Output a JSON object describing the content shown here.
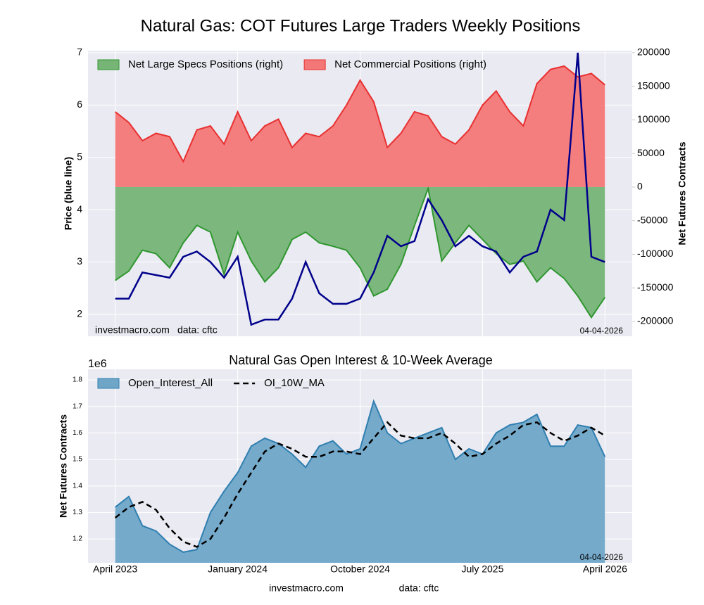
{
  "title": "Natural Gas: COT Futures Large Traders Weekly Positions",
  "footer": {
    "site": "investmacro.com",
    "source": "data: cftc"
  },
  "chart_data": [
    {
      "type": "line",
      "y_label": "Price (blue line)",
      "y2_label": "Net Futures Contracts",
      "annotations": {
        "site": "investmacro.com",
        "source": "data: cftc",
        "date": "04-04-2026"
      },
      "x": [
        "2023-04",
        "2023-05",
        "2023-06",
        "2023-07",
        "2023-08",
        "2023-09",
        "2023-10",
        "2023-11",
        "2023-12",
        "2024-01",
        "2024-02",
        "2024-03",
        "2024-04",
        "2024-05",
        "2024-06",
        "2024-07",
        "2024-08",
        "2024-09",
        "2024-10",
        "2024-11",
        "2024-12",
        "2025-01",
        "2025-02",
        "2025-03",
        "2025-04",
        "2025-05",
        "2025-06",
        "2025-07",
        "2025-08",
        "2025-09",
        "2025-10",
        "2025-11",
        "2025-12",
        "2026-01",
        "2026-02",
        "2026-03",
        "2026-04"
      ],
      "xlim": [
        "2023-02",
        "2026-06"
      ],
      "ylim": [
        1.58,
        7.04
      ],
      "yticks": [
        2,
        3,
        4,
        5,
        6,
        7
      ],
      "y2lim": [
        -222000,
        203000
      ],
      "y2ticks": [
        -200000,
        -150000,
        -100000,
        -50000,
        0,
        50000,
        100000,
        150000,
        200000
      ],
      "grid": true,
      "legend": "upper left",
      "series": [
        {
          "name": "Net Large Specs Positions (right)",
          "type": "area",
          "axis": "y2",
          "color": "#76b576",
          "line_color": "#2f962f",
          "values": [
            -139000,
            -125000,
            -94000,
            -99000,
            -120000,
            -83000,
            -57000,
            -67000,
            -130000,
            -67000,
            -110000,
            -141000,
            -120000,
            -78000,
            -67000,
            -83000,
            -88000,
            -94000,
            -120000,
            -162000,
            -152000,
            -115000,
            -57000,
            -2000,
            -110000,
            -83000,
            -57000,
            -78000,
            -99000,
            -115000,
            -110000,
            -141000,
            -120000,
            -136000,
            -162000,
            -194000,
            -164000
          ]
        },
        {
          "name": "Net Commercial Positions (right)",
          "type": "area",
          "axis": "y2",
          "color": "#f47777",
          "line_color": "#e83030",
          "values": [
            112000,
            96000,
            69000,
            80000,
            75000,
            38000,
            85000,
            91000,
            64000,
            112000,
            69000,
            91000,
            101000,
            59000,
            80000,
            75000,
            91000,
            122000,
            159000,
            127000,
            59000,
            80000,
            112000,
            106000,
            75000,
            64000,
            85000,
            122000,
            143000,
            112000,
            91000,
            154000,
            175000,
            180000,
            164000,
            169000,
            152000
          ]
        },
        {
          "type": "line",
          "axis": "y",
          "color": "#00008b",
          "values": [
            2.3,
            2.3,
            2.8,
            2.75,
            2.7,
            3.1,
            3.2,
            3.0,
            2.7,
            3.1,
            1.8,
            1.9,
            1.9,
            2.3,
            3.0,
            2.4,
            2.2,
            2.2,
            2.3,
            2.8,
            3.5,
            3.3,
            3.4,
            4.2,
            3.8,
            3.3,
            3.5,
            3.3,
            3.2,
            2.8,
            3.1,
            3.2,
            4.0,
            3.8,
            7.0,
            3.1,
            3.0
          ]
        }
      ]
    },
    {
      "type": "area",
      "title": "Natural Gas Open Interest & 10-Week Average",
      "y_label": "Net Futures Contracts",
      "y_offset": "1e6",
      "annotations": {
        "date": "04-04-2026"
      },
      "x": [
        "2023-04",
        "2023-05",
        "2023-06",
        "2023-07",
        "2023-08",
        "2023-09",
        "2023-10",
        "2023-11",
        "2023-12",
        "2024-01",
        "2024-02",
        "2024-03",
        "2024-04",
        "2024-05",
        "2024-06",
        "2024-07",
        "2024-08",
        "2024-09",
        "2024-10",
        "2024-11",
        "2024-12",
        "2025-01",
        "2025-02",
        "2025-03",
        "2025-04",
        "2025-05",
        "2025-06",
        "2025-07",
        "2025-08",
        "2025-09",
        "2025-10",
        "2025-11",
        "2025-12",
        "2026-01",
        "2026-02",
        "2026-03",
        "2026-04"
      ],
      "xlim": [
        "2023-02",
        "2026-06"
      ],
      "xticks": [
        {
          "value": "2023-04",
          "label": "April 2023"
        },
        {
          "value": "2024-01",
          "label": "January 2024"
        },
        {
          "value": "2024-10",
          "label": "October 2024"
        },
        {
          "value": "2025-07",
          "label": "July 2025"
        },
        {
          "value": "2026-04",
          "label": "April 2026"
        }
      ],
      "ylim": [
        1.11,
        1.84
      ],
      "yticks": [
        1.2,
        1.3,
        1.4,
        1.5,
        1.6,
        1.7,
        1.8
      ],
      "grid": true,
      "legend": "upper left",
      "series": [
        {
          "name": "Open_Interest_All",
          "type": "area",
          "axis": "y",
          "color": "#6fa6c8",
          "line_color": "#2f7fb0",
          "values": [
            1.32,
            1.36,
            1.25,
            1.23,
            1.18,
            1.15,
            1.16,
            1.3,
            1.38,
            1.45,
            1.55,
            1.58,
            1.56,
            1.52,
            1.47,
            1.55,
            1.57,
            1.52,
            1.54,
            1.72,
            1.6,
            1.56,
            1.58,
            1.6,
            1.62,
            1.5,
            1.54,
            1.52,
            1.6,
            1.63,
            1.64,
            1.67,
            1.55,
            1.55,
            1.63,
            1.62,
            1.51
          ]
        },
        {
          "name": "OI_10W_MA",
          "type": "line",
          "axis": "y",
          "color": "#000000",
          "dash": true,
          "values": [
            1.28,
            1.32,
            1.34,
            1.31,
            1.24,
            1.19,
            1.17,
            1.2,
            1.28,
            1.37,
            1.45,
            1.53,
            1.56,
            1.54,
            1.51,
            1.51,
            1.53,
            1.53,
            1.52,
            1.58,
            1.64,
            1.59,
            1.58,
            1.58,
            1.6,
            1.56,
            1.51,
            1.52,
            1.56,
            1.59,
            1.63,
            1.64,
            1.6,
            1.57,
            1.59,
            1.62,
            1.59
          ]
        }
      ]
    }
  ]
}
